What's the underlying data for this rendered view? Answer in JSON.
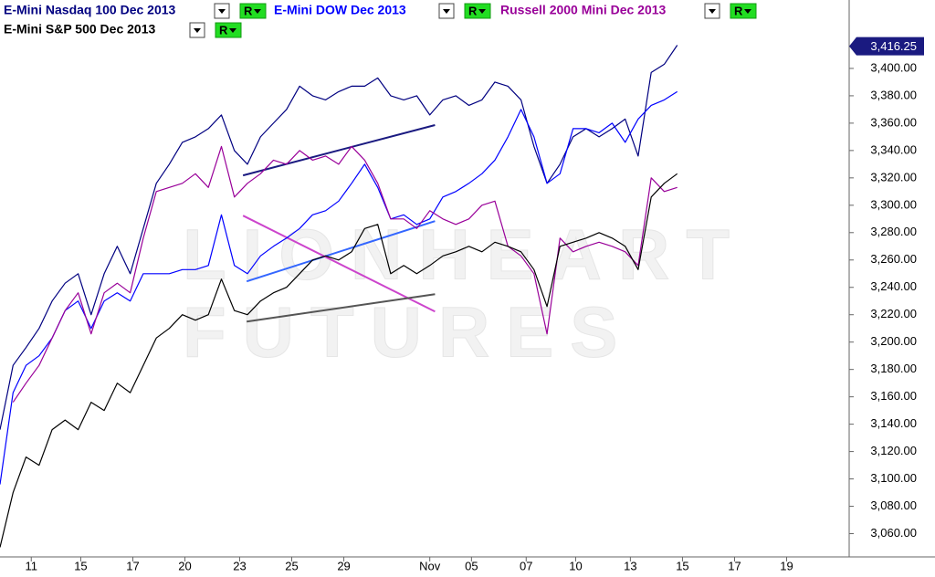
{
  "chart_data": {
    "type": "line",
    "legend_button": "R",
    "watermark": [
      "LIONHEART",
      "FUTURES"
    ],
    "xlim": [
      0,
      32.6
    ],
    "ylim": [
      3043,
      3450
    ],
    "xticks": [
      {
        "value": 1.2,
        "label": "11"
      },
      {
        "value": 3.1,
        "label": "15"
      },
      {
        "value": 5.1,
        "label": "17"
      },
      {
        "value": 7.1,
        "label": "20"
      },
      {
        "value": 9.2,
        "label": "23"
      },
      {
        "value": 11.2,
        "label": "25"
      },
      {
        "value": 13.2,
        "label": "29"
      },
      {
        "value": 16.5,
        "label": "Nov"
      },
      {
        "value": 18.1,
        "label": "05"
      },
      {
        "value": 20.2,
        "label": "07"
      },
      {
        "value": 22.1,
        "label": "10"
      },
      {
        "value": 24.2,
        "label": "13"
      },
      {
        "value": 26.2,
        "label": "15"
      },
      {
        "value": 28.2,
        "label": "17"
      },
      {
        "value": 30.2,
        "label": "19"
      }
    ],
    "yticks": [
      {
        "value": 3060,
        "label": "3,060.00"
      },
      {
        "value": 3080,
        "label": "3,080.00"
      },
      {
        "value": 3100,
        "label": "3,100.00"
      },
      {
        "value": 3120,
        "label": "3,120.00"
      },
      {
        "value": 3140,
        "label": "3,140.00"
      },
      {
        "value": 3160,
        "label": "3,160.00"
      },
      {
        "value": 3180,
        "label": "3,180.00"
      },
      {
        "value": 3200,
        "label": "3,200.00"
      },
      {
        "value": 3220,
        "label": "3,220.00"
      },
      {
        "value": 3240,
        "label": "3,240.00"
      },
      {
        "value": 3260,
        "label": "3,260.00"
      },
      {
        "value": 3280,
        "label": "3,280.00"
      },
      {
        "value": 3300,
        "label": "3,300.00"
      },
      {
        "value": 3320,
        "label": "3,320.00"
      },
      {
        "value": 3340,
        "label": "3,340.00"
      },
      {
        "value": 3360,
        "label": "3,360.00"
      },
      {
        "value": 3380,
        "label": "3,380.00"
      },
      {
        "value": 3400,
        "label": "3,400.00"
      }
    ],
    "price_marker": {
      "value": 3416.25,
      "label": "3,416.25",
      "color": "#1a1a80"
    },
    "x": [
      0,
      0.5,
      1,
      1.5,
      2,
      2.5,
      3,
      3.5,
      4,
      4.5,
      5,
      5.5,
      6,
      6.5,
      7,
      7.5,
      8,
      8.5,
      9,
      9.5,
      10,
      10.5,
      11,
      11.5,
      12,
      12.5,
      13,
      13.5,
      14,
      14.5,
      15,
      15.5,
      16,
      16.5,
      17,
      17.5,
      18,
      18.5,
      19,
      19.5,
      20,
      20.5,
      21,
      21.5,
      22,
      22.5,
      23,
      23.5,
      24,
      24.5,
      25,
      25.5,
      26
    ],
    "series": [
      {
        "name": "E-Mini Nasdaq 100 Dec 2013",
        "color": "#000080",
        "values": [
          3136,
          3183,
          3196,
          3210,
          3230,
          3243,
          3250,
          3220,
          3250,
          3270,
          3250,
          3283,
          3316,
          3330,
          3346,
          3350,
          3356,
          3366,
          3340,
          3330,
          3350,
          3360,
          3370,
          3387,
          3380,
          3377,
          3383,
          3387,
          3387,
          3393,
          3380,
          3377,
          3380,
          3366,
          3377,
          3380,
          3373,
          3377,
          3390,
          3387,
          3377,
          3343,
          3316,
          3330,
          3350,
          3356,
          3350,
          3356,
          3363,
          3336,
          3397,
          3403,
          3417
        ]
      },
      {
        "name": "E-Mini DOW Dec 2013",
        "color": "#0000ff",
        "values": [
          3096,
          3163,
          3183,
          3190,
          3203,
          3223,
          3230,
          3210,
          3230,
          3236,
          3230,
          3250,
          3250,
          3250,
          3253,
          3253,
          3256,
          3293,
          3256,
          3250,
          3263,
          3270,
          3276,
          3283,
          3293,
          3296,
          3303,
          3316,
          3330,
          3313,
          3290,
          3293,
          3286,
          3290,
          3306,
          3310,
          3316,
          3323,
          3333,
          3350,
          3370,
          3350,
          3316,
          3323,
          3356,
          3356,
          3353,
          3360,
          3346,
          3363,
          3373,
          3377,
          3383
        ]
      },
      {
        "name": "Russell 2000 Mini Dec 2013",
        "color": "#990099",
        "values": [
          null,
          3156,
          3170,
          3183,
          3203,
          3223,
          3236,
          3206,
          3236,
          3243,
          3236,
          3276,
          3310,
          3313,
          3316,
          3323,
          3313,
          3343,
          3306,
          3316,
          3323,
          3333,
          3330,
          3340,
          3333,
          3336,
          3330,
          3343,
          3333,
          3316,
          3290,
          3290,
          3283,
          3296,
          3290,
          3286,
          3290,
          3300,
          3303,
          3270,
          3263,
          3250,
          3206,
          3276,
          3266,
          3270,
          3273,
          3270,
          3266,
          3256,
          3320,
          3310,
          3313
        ]
      },
      {
        "name": "E-Mini S&P 500 Dec 2013",
        "color": "#000000",
        "values": [
          3050,
          3090,
          3116,
          3110,
          3136,
          3143,
          3136,
          3156,
          3150,
          3170,
          3163,
          3183,
          3203,
          3210,
          3220,
          3216,
          3220,
          3246,
          3223,
          3220,
          3230,
          3236,
          3240,
          3250,
          3260,
          3263,
          3260,
          3266,
          3283,
          3286,
          3250,
          3256,
          3250,
          3256,
          3263,
          3266,
          3270,
          3266,
          3273,
          3270,
          3266,
          3253,
          3226,
          3270,
          3273,
          3276,
          3280,
          3276,
          3270,
          3253,
          3306,
          3316,
          3323
        ]
      }
    ],
    "trendlines": [
      {
        "color": "#1a1a80",
        "x": [
          9.33,
          16.7
        ],
        "y": [
          3321.8,
          3358.6
        ]
      },
      {
        "color": "#3366ff",
        "x": [
          9.47,
          16.7
        ],
        "y": [
          3244.4,
          3288.4
        ]
      },
      {
        "color": "#cc44cc",
        "x": [
          9.33,
          16.7
        ],
        "y": [
          3292.4,
          3222.3
        ]
      },
      {
        "color": "#555555",
        "x": [
          9.47,
          16.7
        ],
        "y": [
          3215,
          3235
        ]
      }
    ]
  }
}
